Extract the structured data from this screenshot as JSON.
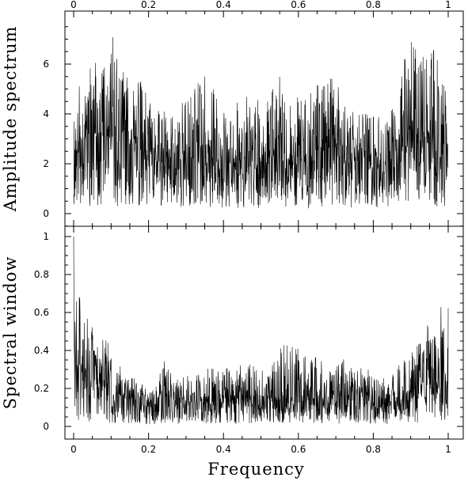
{
  "chart_data": [
    {
      "type": "line",
      "panel": "top",
      "ylabel": "Amplitude spectrum",
      "xlim": [
        0,
        1
      ],
      "ylim": [
        -0.5,
        7.8
      ],
      "xticks": [
        0,
        0.2,
        0.4,
        0.6,
        0.8,
        1
      ],
      "xtick_labels": [
        "0",
        "0.2",
        "0.4",
        "0.6",
        "0.8",
        "1"
      ],
      "yticks": [
        0,
        2,
        4,
        6
      ],
      "ytick_labels": [
        "0",
        "2",
        "4",
        "6"
      ],
      "x_range": [
        0,
        1
      ],
      "envelope": {
        "x": [
          0,
          0.02,
          0.05,
          0.08,
          0.1,
          0.12,
          0.15,
          0.18,
          0.2,
          0.23,
          0.25,
          0.28,
          0.3,
          0.33,
          0.35,
          0.38,
          0.4,
          0.42,
          0.45,
          0.48,
          0.5,
          0.53,
          0.55,
          0.57,
          0.6,
          0.62,
          0.65,
          0.67,
          0.7,
          0.72,
          0.75,
          0.78,
          0.8,
          0.82,
          0.85,
          0.88,
          0.9,
          0.92,
          0.95,
          0.97,
          1.0
        ],
        "mean": [
          2.2,
          3.0,
          3.2,
          3.0,
          3.1,
          2.9,
          2.8,
          2.6,
          2.2,
          2.0,
          2.1,
          2.0,
          2.3,
          2.6,
          2.7,
          2.4,
          2.2,
          2.0,
          2.2,
          2.3,
          2.1,
          2.3,
          2.3,
          1.9,
          2.0,
          2.0,
          2.6,
          2.8,
          2.6,
          2.3,
          2.1,
          2.0,
          1.9,
          2.0,
          2.1,
          2.6,
          2.9,
          3.0,
          3.0,
          2.8,
          2.6
        ],
        "peak": [
          4.0,
          5.8,
          6.3,
          6.0,
          7.5,
          6.0,
          5.6,
          5.5,
          4.5,
          4.2,
          4.6,
          4.0,
          5.1,
          5.2,
          5.6,
          4.9,
          4.5,
          3.9,
          5.0,
          4.8,
          4.4,
          5.0,
          5.5,
          4.2,
          4.7,
          4.8,
          5.4,
          5.7,
          5.3,
          4.9,
          4.4,
          4.0,
          4.2,
          4.2,
          4.4,
          6.0,
          7.2,
          7.0,
          6.9,
          6.3,
          5.0
        ]
      }
    },
    {
      "type": "line",
      "panel": "bottom",
      "xlabel": "Frequency",
      "ylabel": "Spectral window",
      "xlim": [
        0,
        1
      ],
      "ylim": [
        -0.04,
        1.02
      ],
      "xticks": [
        0,
        0.2,
        0.4,
        0.6,
        0.8,
        1
      ],
      "xtick_labels": [
        "0",
        "0.2",
        "0.4",
        "0.6",
        "0.8",
        "1"
      ],
      "yticks": [
        0,
        0.2,
        0.4,
        0.6,
        0.8,
        1
      ],
      "ytick_labels": [
        "0",
        "0.2",
        "0.4",
        "0.6",
        "0.8",
        "1"
      ],
      "x_range": [
        0,
        1
      ],
      "envelope": {
        "x": [
          0,
          0.005,
          0.01,
          0.02,
          0.04,
          0.06,
          0.08,
          0.1,
          0.12,
          0.15,
          0.18,
          0.2,
          0.22,
          0.24,
          0.26,
          0.28,
          0.3,
          0.33,
          0.36,
          0.4,
          0.43,
          0.46,
          0.5,
          0.53,
          0.56,
          0.6,
          0.63,
          0.66,
          0.7,
          0.73,
          0.76,
          0.78,
          0.8,
          0.83,
          0.86,
          0.9,
          0.93,
          0.96,
          0.98,
          1.0
        ],
        "mean": [
          0.3,
          0.35,
          0.32,
          0.3,
          0.26,
          0.24,
          0.22,
          0.2,
          0.17,
          0.14,
          0.11,
          0.1,
          0.12,
          0.19,
          0.15,
          0.12,
          0.13,
          0.14,
          0.16,
          0.16,
          0.15,
          0.14,
          0.13,
          0.14,
          0.16,
          0.17,
          0.15,
          0.14,
          0.15,
          0.15,
          0.15,
          0.17,
          0.1,
          0.11,
          0.13,
          0.18,
          0.22,
          0.28,
          0.3,
          0.28
        ],
        "peak": [
          1.0,
          0.76,
          0.72,
          0.7,
          0.62,
          0.52,
          0.48,
          0.42,
          0.33,
          0.27,
          0.24,
          0.2,
          0.22,
          0.36,
          0.3,
          0.25,
          0.27,
          0.29,
          0.33,
          0.32,
          0.3,
          0.35,
          0.33,
          0.36,
          0.43,
          0.44,
          0.4,
          0.36,
          0.34,
          0.36,
          0.34,
          0.33,
          0.25,
          0.26,
          0.3,
          0.4,
          0.48,
          0.6,
          0.66,
          0.65
        ]
      }
    }
  ]
}
